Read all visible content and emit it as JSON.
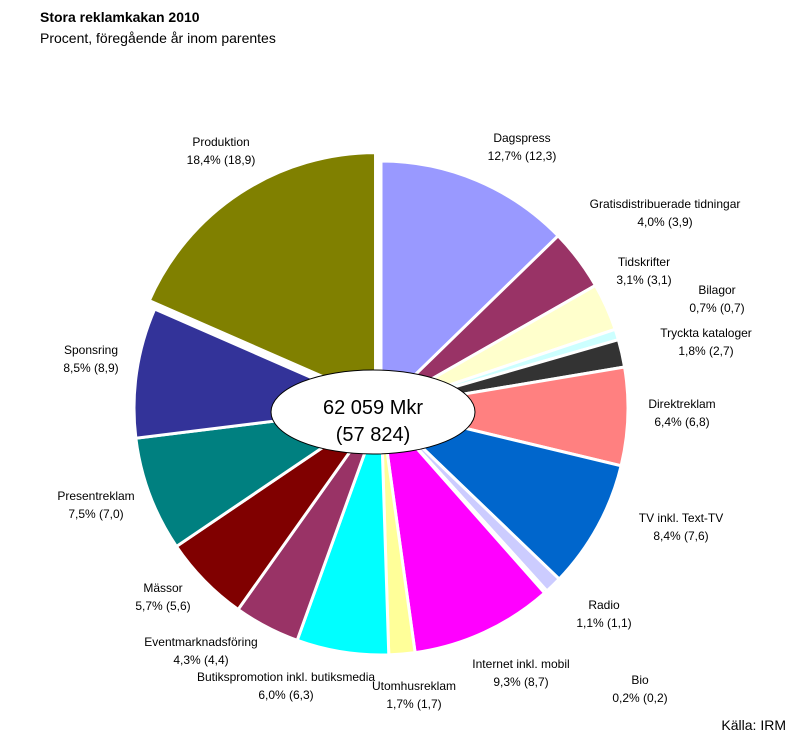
{
  "chart_data": {
    "type": "pie",
    "title": "Stora reklamkakan 2010",
    "subtitle": "Procent, föregående år inom parentes",
    "center_label": [
      "62 059 Mkr",
      "(57 824)"
    ],
    "source": "Källa: IRM",
    "categories": [
      "Dagspress",
      "Gratisdistribuerade tidningar",
      "Tidskrifter",
      "Bilagor",
      "Tryckta kataloger",
      "Direktreklam",
      "TV inkl. Text-TV",
      "Radio",
      "Bio",
      "Internet inkl. mobil",
      "Utomhusreklam",
      "Butikspromotion inkl. butiksmedia",
      "Eventmarknadsföring",
      "Mässor",
      "Presentreklam",
      "Sponsring",
      "Produktion"
    ],
    "values": [
      12.7,
      4.0,
      3.1,
      0.7,
      1.8,
      6.4,
      8.4,
      1.1,
      0.2,
      9.3,
      1.7,
      6.0,
      4.3,
      5.7,
      7.5,
      8.5,
      18.4
    ],
    "value_labels": [
      "12,7% (12,3)",
      "4,0% (3,9)",
      "3,1% (3,1)",
      "0,7% (0,7)",
      "1,8% (2,7)",
      "6,4% (6,8)",
      "8,4% (7,6)",
      "1,1% (1,1)",
      "0,2% (0,2)",
      "9,3% (8,7)",
      "1,7% (1,7)",
      "6,0% (6,3)",
      "4,3% (4,4)",
      "5,7% (5,6)",
      "7,5% (7,0)",
      "8,5% (8,9)",
      "18,4% (18,9)"
    ],
    "colors": [
      "#9999ff",
      "#993366",
      "#ffffcc",
      "#ccffff",
      "#333333",
      "#ff8080",
      "#0066cc",
      "#ccccff",
      "#000080",
      "#ff00ff",
      "#ffff99",
      "#00ffff",
      "#993366",
      "#800000",
      "#008080",
      "#333399",
      "#808000"
    ],
    "exploded": [
      "Produktion"
    ]
  }
}
